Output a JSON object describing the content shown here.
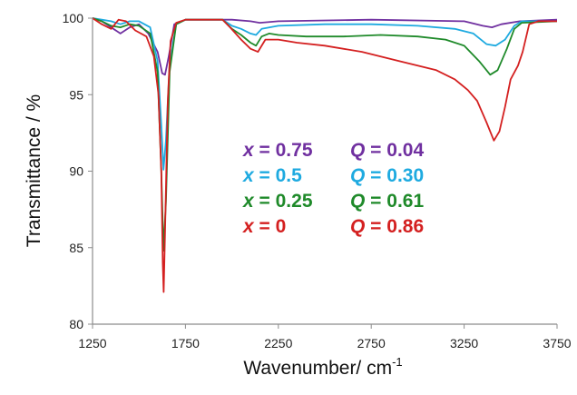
{
  "chart_data": {
    "type": "line",
    "title": "",
    "xlabel": "Wavenumber/ cm",
    "xlabel_superscript": "-1",
    "ylabel": "Transmittance / %",
    "xlim": [
      1250,
      3750
    ],
    "ylim": [
      80,
      100
    ],
    "xticks": [
      "1250",
      "1750",
      "2250",
      "2750",
      "3250",
      "3750"
    ],
    "yticks": [
      "80",
      "85",
      "90",
      "95",
      "100"
    ],
    "grid": false,
    "legend_position": "center",
    "series": [
      {
        "label_var": "x",
        "label_value": "= 0.75",
        "q_var": "Q",
        "q_value": "= 0.04",
        "color": "#7030a0",
        "points": [
          [
            1250,
            100
          ],
          [
            1300,
            99.8
          ],
          [
            1350,
            99.4
          ],
          [
            1400,
            99.0
          ],
          [
            1450,
            99.4
          ],
          [
            1500,
            99.6
          ],
          [
            1550,
            99.0
          ],
          [
            1600,
            97.8
          ],
          [
            1625,
            96.4
          ],
          [
            1640,
            96.3
          ],
          [
            1660,
            97.5
          ],
          [
            1690,
            99.6
          ],
          [
            1750,
            99.9
          ],
          [
            2000,
            99.9
          ],
          [
            2100,
            99.8
          ],
          [
            2150,
            99.7
          ],
          [
            2250,
            99.8
          ],
          [
            2750,
            99.9
          ],
          [
            3250,
            99.8
          ],
          [
            3350,
            99.5
          ],
          [
            3400,
            99.4
          ],
          [
            3450,
            99.6
          ],
          [
            3550,
            99.8
          ],
          [
            3750,
            99.9
          ]
        ]
      },
      {
        "label_var": "x",
        "label_value": "= 0.5",
        "q_var": "Q",
        "q_value": "= 0.30",
        "color": "#1eaae0",
        "points": [
          [
            1250,
            100
          ],
          [
            1300,
            99.9
          ],
          [
            1350,
            99.8
          ],
          [
            1400,
            99.6
          ],
          [
            1450,
            99.8
          ],
          [
            1500,
            99.8
          ],
          [
            1560,
            99.4
          ],
          [
            1600,
            97.2
          ],
          [
            1620,
            93.0
          ],
          [
            1632,
            90.1
          ],
          [
            1645,
            92.0
          ],
          [
            1665,
            97.0
          ],
          [
            1700,
            99.6
          ],
          [
            1750,
            99.9
          ],
          [
            1950,
            99.9
          ],
          [
            2000,
            99.5
          ],
          [
            2050,
            99.3
          ],
          [
            2100,
            99.0
          ],
          [
            2130,
            98.9
          ],
          [
            2160,
            99.3
          ],
          [
            2250,
            99.5
          ],
          [
            2500,
            99.6
          ],
          [
            2750,
            99.6
          ],
          [
            3000,
            99.5
          ],
          [
            3200,
            99.3
          ],
          [
            3300,
            99.0
          ],
          [
            3370,
            98.3
          ],
          [
            3420,
            98.2
          ],
          [
            3470,
            98.6
          ],
          [
            3520,
            99.5
          ],
          [
            3560,
            99.8
          ],
          [
            3750,
            99.8
          ]
        ]
      },
      {
        "label_var": "x",
        "label_value": "= 0.25",
        "q_var": "Q",
        "q_value": "= 0.61",
        "color": "#1f8a2a",
        "points": [
          [
            1250,
            100
          ],
          [
            1300,
            99.8
          ],
          [
            1350,
            99.5
          ],
          [
            1400,
            99.4
          ],
          [
            1450,
            99.6
          ],
          [
            1500,
            99.5
          ],
          [
            1560,
            99.0
          ],
          [
            1600,
            96.5
          ],
          [
            1620,
            90.0
          ],
          [
            1632,
            84.8
          ],
          [
            1645,
            88.0
          ],
          [
            1665,
            96.5
          ],
          [
            1700,
            99.6
          ],
          [
            1750,
            99.9
          ],
          [
            1950,
            99.9
          ],
          [
            2000,
            99.3
          ],
          [
            2050,
            98.9
          ],
          [
            2100,
            98.4
          ],
          [
            2130,
            98.2
          ],
          [
            2160,
            98.8
          ],
          [
            2200,
            99.0
          ],
          [
            2250,
            98.9
          ],
          [
            2400,
            98.8
          ],
          [
            2600,
            98.8
          ],
          [
            2800,
            98.9
          ],
          [
            3000,
            98.8
          ],
          [
            3150,
            98.6
          ],
          [
            3250,
            98.2
          ],
          [
            3330,
            97.2
          ],
          [
            3390,
            96.3
          ],
          [
            3430,
            96.6
          ],
          [
            3480,
            98.0
          ],
          [
            3520,
            99.3
          ],
          [
            3560,
            99.7
          ],
          [
            3750,
            99.8
          ]
        ]
      },
      {
        "label_var": "x",
        "label_value": "= 0",
        "q_var": "Q",
        "q_value": "= 0.86",
        "color": "#d42020",
        "points": [
          [
            1250,
            100
          ],
          [
            1300,
            99.6
          ],
          [
            1350,
            99.3
          ],
          [
            1390,
            99.9
          ],
          [
            1430,
            99.8
          ],
          [
            1480,
            99.2
          ],
          [
            1540,
            98.8
          ],
          [
            1580,
            97.5
          ],
          [
            1605,
            95.0
          ],
          [
            1620,
            90.0
          ],
          [
            1628,
            84.0
          ],
          [
            1633,
            82.1
          ],
          [
            1640,
            86.0
          ],
          [
            1655,
            94.5
          ],
          [
            1670,
            98.5
          ],
          [
            1700,
            99.7
          ],
          [
            1750,
            99.9
          ],
          [
            1950,
            99.9
          ],
          [
            1990,
            99.4
          ],
          [
            2050,
            98.6
          ],
          [
            2100,
            98.0
          ],
          [
            2140,
            97.8
          ],
          [
            2180,
            98.6
          ],
          [
            2250,
            98.6
          ],
          [
            2350,
            98.4
          ],
          [
            2500,
            98.2
          ],
          [
            2700,
            97.8
          ],
          [
            2900,
            97.2
          ],
          [
            3100,
            96.6
          ],
          [
            3200,
            96.0
          ],
          [
            3270,
            95.3
          ],
          [
            3320,
            94.6
          ],
          [
            3370,
            93.2
          ],
          [
            3410,
            92.0
          ],
          [
            3440,
            92.6
          ],
          [
            3470,
            94.2
          ],
          [
            3500,
            96.0
          ],
          [
            3540,
            96.9
          ],
          [
            3565,
            97.8
          ],
          [
            3600,
            99.6
          ],
          [
            3650,
            99.8
          ],
          [
            3750,
            99.8
          ]
        ]
      }
    ]
  }
}
